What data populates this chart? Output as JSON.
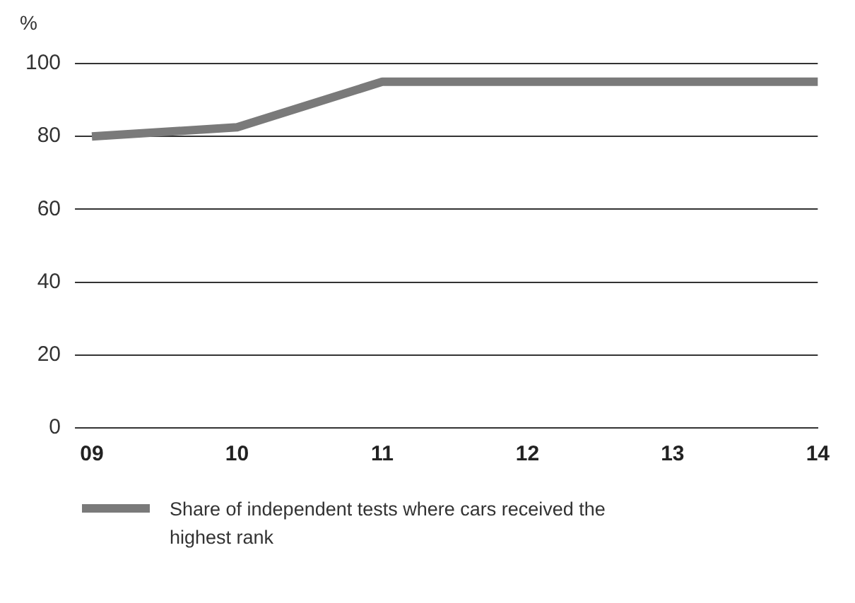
{
  "chart_data": {
    "type": "line",
    "ylabel": "%",
    "categories": [
      "09",
      "10",
      "11",
      "12",
      "13",
      "14"
    ],
    "series": [
      {
        "name": "Share of independent tests where cars received the highest rank",
        "color": "#7a7a7a",
        "values": [
          80,
          82.5,
          95,
          95,
          95,
          95
        ]
      }
    ],
    "ylim": [
      0,
      100
    ],
    "yticks": [
      0,
      20,
      40,
      60,
      80,
      100
    ],
    "grid": "y",
    "legend": "bottom",
    "marker": "none"
  }
}
